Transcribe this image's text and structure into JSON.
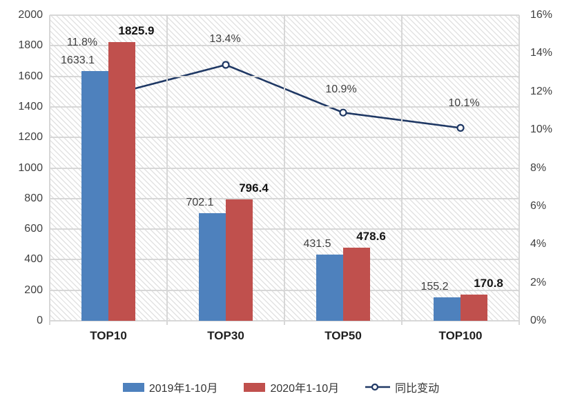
{
  "chart_data": {
    "type": "bar",
    "subtype": "grouped-bars-with-line-overlay",
    "title": "",
    "categories": [
      "TOP10",
      "TOP30",
      "TOP50",
      "TOP100"
    ],
    "series": [
      {
        "name": "2019年1-10月",
        "kind": "bar",
        "axis": "left",
        "color": "#4e81bd",
        "values": [
          1633.1,
          702.1,
          431.5,
          155.2
        ],
        "data_labels": [
          "1633.1",
          "702.1",
          "431.5",
          "155.2"
        ]
      },
      {
        "name": "2020年1-10月",
        "kind": "bar",
        "axis": "left",
        "color": "#c0504d",
        "values": [
          1825.9,
          796.4,
          478.6,
          170.8
        ],
        "data_labels": [
          "1825.9",
          "796.4",
          "478.6",
          "170.8"
        ]
      },
      {
        "name": "同比变动",
        "kind": "line",
        "axis": "right",
        "color": "#1f3864",
        "marker": "open-circle",
        "values": [
          11.8,
          13.4,
          10.9,
          10.1
        ],
        "data_labels": [
          "11.8%",
          "13.4%",
          "10.9%",
          "10.1%"
        ]
      }
    ],
    "left_axis": {
      "min": 0,
      "max": 2000,
      "step": 200,
      "tick_labels": [
        "0",
        "200",
        "400",
        "600",
        "800",
        "1000",
        "1200",
        "1400",
        "1600",
        "1800",
        "2000"
      ]
    },
    "right_axis": {
      "min": 0,
      "max": 16,
      "step": 2,
      "tick_labels": [
        "0%",
        "2%",
        "4%",
        "6%",
        "8%",
        "10%",
        "12%",
        "14%",
        "16%"
      ]
    },
    "legend": {
      "position": "bottom",
      "entries": [
        "2019年1-10月",
        "2020年1-10月",
        "同比变动"
      ]
    },
    "grid": true,
    "plot_area_fill": "light-diagonal-hatch",
    "colors": {
      "gridline": "#d7d7d7",
      "hatch": "#e2e2e2",
      "axis_text": "#404040",
      "category_text": "#1f1f1f",
      "line": "#1f3864",
      "bar_2019": "#4e81bd",
      "bar_2020": "#c0504d"
    }
  }
}
